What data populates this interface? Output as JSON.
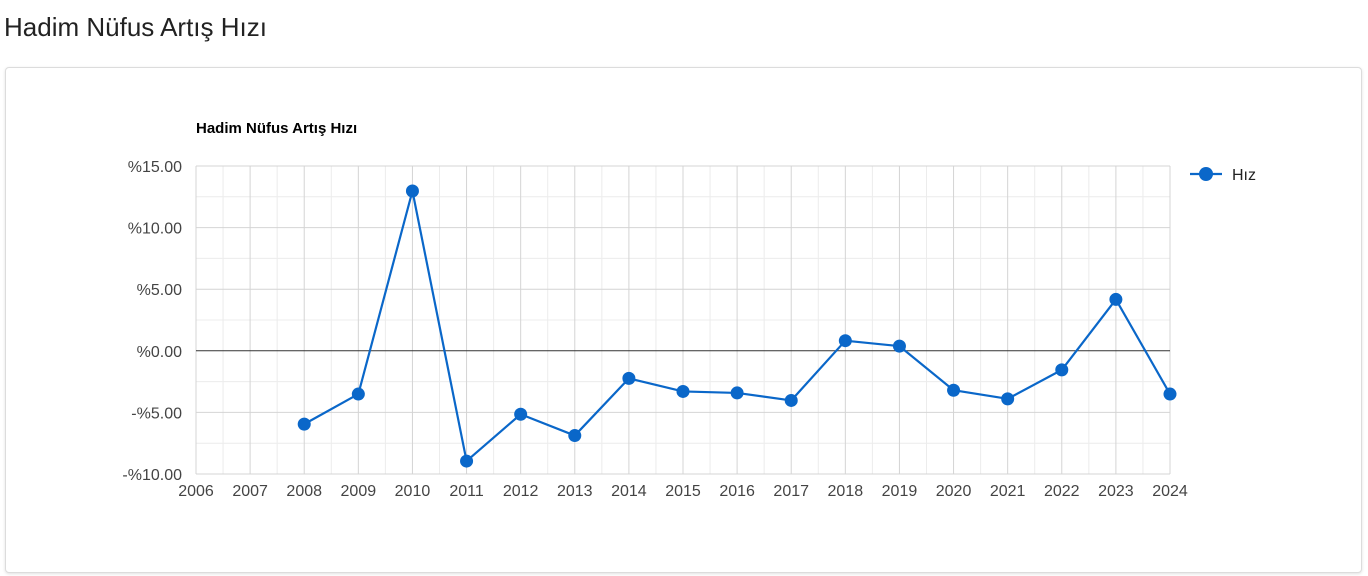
{
  "page": {
    "heading": "Hadim Nüfus Artış Hızı"
  },
  "chart_data": {
    "type": "line",
    "title": "Hadim Nüfus Artış Hızı",
    "xlabel": "",
    "ylabel": "",
    "x": [
      2006,
      2007,
      2008,
      2009,
      2010,
      2011,
      2012,
      2013,
      2014,
      2015,
      2016,
      2017,
      2018,
      2019,
      2020,
      2021,
      2022,
      2023,
      2024
    ],
    "xlim": [
      2006,
      2024
    ],
    "ylim": [
      -10,
      15
    ],
    "y_ticks": [
      15,
      10,
      5,
      0,
      -5,
      -10
    ],
    "y_tick_labels": [
      "%15.00",
      "%10.00",
      "%5.00",
      "%0.00",
      "-%5.00",
      "-%10.00"
    ],
    "x_tick_labels": [
      "2006",
      "2007",
      "2008",
      "2009",
      "2010",
      "2011",
      "2012",
      "2013",
      "2014",
      "2015",
      "2016",
      "2017",
      "2018",
      "2019",
      "2020",
      "2021",
      "2022",
      "2023",
      "2024"
    ],
    "grid": true,
    "legend_position": "right",
    "series": [
      {
        "name": "Hız",
        "color": "#0a67c9",
        "points": [
          {
            "x": 2008,
            "y": -5.95
          },
          {
            "x": 2009,
            "y": -3.51
          },
          {
            "x": 2010,
            "y": 12.97
          },
          {
            "x": 2011,
            "y": -8.95
          },
          {
            "x": 2012,
            "y": -5.15
          },
          {
            "x": 2013,
            "y": -6.88
          },
          {
            "x": 2014,
            "y": -2.24
          },
          {
            "x": 2015,
            "y": -3.3
          },
          {
            "x": 2016,
            "y": -3.42
          },
          {
            "x": 2017,
            "y": -4.03
          },
          {
            "x": 2018,
            "y": 0.82
          },
          {
            "x": 2019,
            "y": 0.38
          },
          {
            "x": 2020,
            "y": -3.2
          },
          {
            "x": 2021,
            "y": -3.9
          },
          {
            "x": 2022,
            "y": -1.55
          },
          {
            "x": 2023,
            "y": 4.17
          },
          {
            "x": 2024,
            "y": -3.51
          }
        ]
      }
    ]
  }
}
